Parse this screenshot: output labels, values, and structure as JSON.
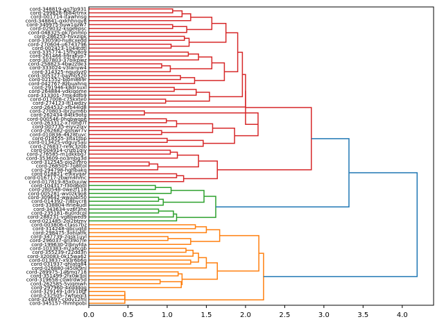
{
  "chart_data": {
    "type": "dendrogram",
    "title": "",
    "xlabel": "",
    "ylabel": "",
    "orientation": "right",
    "xlim": [
      0,
      4.4
    ],
    "xticks": [
      "0.0",
      "0.5",
      "1.0",
      "1.5",
      "2.0",
      "2.5",
      "3.0",
      "3.5",
      "4.0"
    ],
    "grid": false,
    "colors": {
      "red": "#d62728",
      "green": "#2ca02c",
      "orange": "#ff7f0e",
      "blue": "#1f77b4"
    },
    "leaves": [
      "cord-348819-gq7lp931",
      "cord-299828-fb84rtmx",
      "cord-001714-itawhnsg",
      "cord-348841-gxkhhnqy8",
      "cord-349975-ouw1gzw7",
      "cord-029032-ksqeepsc",
      "cord-048325-pk7pnmlo",
      "cord-286253-hvxzipk",
      "cord-330590-hu8cxedd",
      "cord-270604-u6743796",
      "cord-002423-1044tdtl",
      "cord-335774-15fhg8o9",
      "cord-261466-b9rakyp7",
      "cord-307803-37blkpwz",
      "cord-258823-4bwzzde3",
      "cord-333024-v3lanyw4",
      "cord-314325-nguoyz0",
      "cord-305327-bayhb520",
      "cord-021552-bjbm869r",
      "cord-042767-8zbuahnq",
      "cord-291946-k8drsuxl",
      "cord-264884-vdkiqome",
      "cord-313301-7mk4dfb9",
      "cord-017008-c75kxte0",
      "cord-274123-lfj1wdzy",
      "cord-264532-xfb44ld8",
      "cord-270803-ibrzum6b",
      "cord-262434-84tk9otg",
      "cord-000546-0hqbwqpe",
      "cord-263312-x7i0hd7f",
      "cord-007735-eiyv2lxv",
      "cord-262682-gsiswr7v",
      "cord-010836-4428tuvc",
      "cord-018555-3lta1tbp",
      "cord-013425-vdguy5au",
      "cord-276837-re9c3z0b",
      "cord-004914-cnzb1qiv",
      "cord-276585-m1dkkbg7",
      "cord-353609-no3mbg3d",
      "cord-312545-ojo2imro",
      "cord-268505-7g8ltol",
      "cord-294798-hqhbakq",
      "cord-018821-e9ixvqar",
      "cord-016717-zbwm4hmc",
      "cord-017819-85x0uuiw",
      "cord-104317-f30d6o0l",
      "cord-280548-0wezf118",
      "cord-005281-wv0zk9o8",
      "cord-309642-wwaabl50",
      "cord-014392-7j8bycr8",
      "cord-338804-hrie4udl",
      "cord-343634-vz6f3he",
      "cord-235181-8u0rdcpl",
      "cord-288231-vg8bwed9",
      "cord-021485-2ol2btmv",
      "cord-003806-ctass7bz",
      "cord-314248-qbcuqtd",
      "cord-298475-3ohlatfk",
      "cord-347739-2qsk1uyl",
      "cord-296037-gn39o7le",
      "cord-199630-2lbnyfda",
      "cord-103383-m2ahcgb",
      "cord-355239-r22dd3n",
      "cord-320083-0k15wa62",
      "cord-013837-x93r6b6g",
      "cord-031937-qhlatg84",
      "cord-026880-j450k9nl",
      "cord-289975-1a6mq718",
      "cord-351499-2fx0w3ol",
      "cord-319658-c0wlrdw5d",
      "cord-262585-5vjqmwh",
      "cord-297960-4xqddgg",
      "cord-329149-1drv1bgf",
      "cord-232505-7wfseqi3",
      "cord-324697-c0dv12ml",
      "cord-345157-fhmhpobi"
    ],
    "merges": [
      {
        "id": "a1",
        "children": [
          0,
          1
        ],
        "height": 1.07,
        "color": "red"
      },
      {
        "id": "a2",
        "children": [
          "a1",
          2
        ],
        "height": 1.19,
        "color": "red"
      },
      {
        "id": "a3",
        "children": [
          "a2",
          3
        ],
        "height": 1.3,
        "color": "red"
      },
      {
        "id": "b1",
        "children": [
          4,
          5
        ],
        "height": 1.07,
        "color": "red"
      },
      {
        "id": "b2",
        "children": [
          "b1",
          6
        ],
        "height": 1.25,
        "color": "red"
      },
      {
        "id": "a4",
        "children": [
          "a3",
          "b2"
        ],
        "height": 1.57,
        "color": "red"
      },
      {
        "id": "c1",
        "children": [
          7,
          8
        ],
        "height": 1.22,
        "color": "red"
      },
      {
        "id": "c2",
        "children": [
          9,
          10
        ],
        "height": 1.05,
        "color": "red"
      },
      {
        "id": "c3",
        "children": [
          "c1",
          "c2"
        ],
        "height": 1.28,
        "color": "red"
      },
      {
        "id": "a5",
        "children": [
          "a4",
          "c3"
        ],
        "height": 1.75,
        "color": "red"
      },
      {
        "id": "d1",
        "children": [
          11,
          12
        ],
        "height": 1.27,
        "color": "red"
      },
      {
        "id": "d2",
        "children": [
          "d1",
          13
        ],
        "height": 1.4,
        "color": "red"
      },
      {
        "id": "d3",
        "children": [
          14,
          15
        ],
        "height": 0.93,
        "color": "red"
      },
      {
        "id": "d4",
        "children": [
          "d3",
          16
        ],
        "height": 1.04,
        "color": "red"
      },
      {
        "id": "d5",
        "children": [
          "d2",
          "d4"
        ],
        "height": 1.57,
        "color": "red"
      },
      {
        "id": "d6",
        "children": [
          17,
          18
        ],
        "height": 1.17,
        "color": "red"
      },
      {
        "id": "d7",
        "children": [
          "d6",
          19
        ],
        "height": 1.35,
        "color": "red"
      },
      {
        "id": "d8",
        "children": [
          "d5",
          "d7"
        ],
        "height": 1.73,
        "color": "red"
      },
      {
        "id": "a6",
        "children": [
          "a5",
          "d8"
        ],
        "height": 1.9,
        "color": "red"
      },
      {
        "id": "e1",
        "children": [
          20,
          21
        ],
        "height": 1.09,
        "color": "red"
      },
      {
        "id": "e2",
        "children": [
          "e1",
          22
        ],
        "height": 1.37,
        "color": "red"
      },
      {
        "id": "e3",
        "children": [
          23,
          24
        ],
        "height": 0.98,
        "color": "red"
      },
      {
        "id": "e4",
        "children": [
          "e2",
          "e3"
        ],
        "height": 1.54,
        "color": "red"
      },
      {
        "id": "a7",
        "children": [
          "a6",
          "e4"
        ],
        "height": 1.96,
        "color": "red"
      },
      {
        "id": "a8",
        "children": [
          "a7",
          25
        ],
        "height": 2.0,
        "color": "red"
      },
      {
        "id": "f1",
        "children": [
          26,
          27
        ],
        "height": 0.71,
        "color": "red"
      },
      {
        "id": "f2",
        "children": [
          28,
          29
        ],
        "height": 0.99,
        "color": "red"
      },
      {
        "id": "f3",
        "children": [
          "f2",
          30
        ],
        "height": 1.12,
        "color": "red"
      },
      {
        "id": "f4",
        "children": [
          31,
          32
        ],
        "height": 0.93,
        "color": "red"
      },
      {
        "id": "f5",
        "children": [
          "f3",
          "f4"
        ],
        "height": 1.58,
        "color": "red"
      },
      {
        "id": "f6",
        "children": [
          33,
          34
        ],
        "height": 1.0,
        "color": "red"
      },
      {
        "id": "f7",
        "children": [
          "f6",
          35
        ],
        "height": 1.46,
        "color": "red"
      },
      {
        "id": "f8",
        "children": [
          "f5",
          "f7"
        ],
        "height": 1.86,
        "color": "red"
      },
      {
        "id": "f9",
        "children": [
          "f1",
          "f8"
        ],
        "height": 2.16,
        "color": "red"
      },
      {
        "id": "a9",
        "children": [
          "a8",
          "f9"
        ],
        "height": 2.0,
        "color": "red"
      },
      {
        "id": "g1",
        "children": [
          36,
          37
        ],
        "height": 1.04,
        "color": "red"
      },
      {
        "id": "g2",
        "children": [
          "g1",
          38
        ],
        "height": 1.13,
        "color": "red"
      },
      {
        "id": "g3",
        "children": [
          39,
          40
        ],
        "height": 0.77,
        "color": "red"
      },
      {
        "id": "g4",
        "children": [
          "g3",
          41
        ],
        "height": 0.88,
        "color": "red"
      },
      {
        "id": "g5",
        "children": [
          "g2",
          "g4"
        ],
        "height": 1.4,
        "color": "red"
      },
      {
        "id": "g6",
        "children": [
          42,
          43
        ],
        "height": 1.12,
        "color": "red"
      },
      {
        "id": "g7",
        "children": [
          "g6",
          44
        ],
        "height": 1.21,
        "color": "red"
      },
      {
        "id": "g8",
        "children": [
          "g5",
          "g7"
        ],
        "height": 1.64,
        "color": "red"
      },
      {
        "id": "R",
        "children": [
          "a9",
          "g8"
        ],
        "height": 2.84,
        "color": "red"
      },
      {
        "id": "h1",
        "children": [
          45,
          46
        ],
        "height": 0.85,
        "color": "green"
      },
      {
        "id": "h2",
        "children": [
          "h1",
          47
        ],
        "height": 1.05,
        "color": "green"
      },
      {
        "id": "h3",
        "children": [
          48,
          49
        ],
        "height": 0.89,
        "color": "green"
      },
      {
        "id": "h4",
        "children": [
          "h3",
          50
        ],
        "height": 0.95,
        "color": "green"
      },
      {
        "id": "h5",
        "children": [
          "h2",
          "h4"
        ],
        "height": 1.47,
        "color": "green"
      },
      {
        "id": "h6",
        "children": [
          51,
          52
        ],
        "height": 0.89,
        "color": "green"
      },
      {
        "id": "h7",
        "children": [
          "h6",
          53
        ],
        "height": 1.08,
        "color": "green"
      },
      {
        "id": "h8",
        "children": [
          "h7",
          54
        ],
        "height": 1.12,
        "color": "green"
      },
      {
        "id": "G",
        "children": [
          "h5",
          "h8"
        ],
        "height": 1.62,
        "color": "green"
      },
      {
        "id": "RG",
        "children": [
          "R",
          "G"
        ],
        "height": 3.32,
        "color": "blue"
      },
      {
        "id": "i1",
        "children": [
          55,
          56
        ],
        "height": 1.36,
        "color": "orange"
      },
      {
        "id": "i2",
        "children": [
          "i1",
          57
        ],
        "height": 1.5,
        "color": "orange"
      },
      {
        "id": "i3",
        "children": [
          58,
          59
        ],
        "height": 1.01,
        "color": "orange"
      },
      {
        "id": "i4",
        "children": [
          "i3",
          60
        ],
        "height": 1.3,
        "color": "orange"
      },
      {
        "id": "i5",
        "children": [
          "i2",
          "i4"
        ],
        "height": 1.67,
        "color": "orange"
      },
      {
        "id": "j1",
        "children": [
          61,
          62
        ],
        "height": 1.24,
        "color": "orange"
      },
      {
        "id": "j2",
        "children": [
          "j1",
          63
        ],
        "height": 1.33,
        "color": "orange"
      },
      {
        "id": "j3",
        "children": [
          64,
          65
        ],
        "height": 1.3,
        "color": "orange"
      },
      {
        "id": "j4",
        "children": [
          "j2",
          "j3"
        ],
        "height": 1.4,
        "color": "orange"
      },
      {
        "id": "j5",
        "children": [
          "j4",
          66
        ],
        "height": 1.5,
        "color": "orange"
      },
      {
        "id": "k1",
        "children": [
          67,
          68
        ],
        "height": 1.14,
        "color": "orange"
      },
      {
        "id": "k2",
        "children": [
          69,
          70
        ],
        "height": 0.91,
        "color": "orange"
      },
      {
        "id": "k3",
        "children": [
          "k2",
          71
        ],
        "height": 1.18,
        "color": "orange"
      },
      {
        "id": "k4",
        "children": [
          "k1",
          "k3"
        ],
        "height": 1.19,
        "color": "orange"
      },
      {
        "id": "j6",
        "children": [
          "j5",
          "k4"
        ],
        "height": 1.64,
        "color": "orange"
      },
      {
        "id": "O1",
        "children": [
          "i5",
          "j6"
        ],
        "height": 2.17,
        "color": "orange"
      },
      {
        "id": "l1",
        "children": [
          72,
          73
        ],
        "height": 0.46,
        "color": "orange"
      },
      {
        "id": "l2",
        "children": [
          "l1",
          74
        ],
        "height": 0.46,
        "color": "orange"
      },
      {
        "id": "l3",
        "children": [
          "l2",
          75
        ],
        "height": 0.46,
        "color": "orange"
      },
      {
        "id": "O",
        "children": [
          "O1",
          "l3"
        ],
        "height": 2.23,
        "color": "orange"
      },
      {
        "id": "ROOT",
        "children": [
          "RG",
          "O"
        ],
        "height": 4.19,
        "color": "blue"
      }
    ]
  }
}
